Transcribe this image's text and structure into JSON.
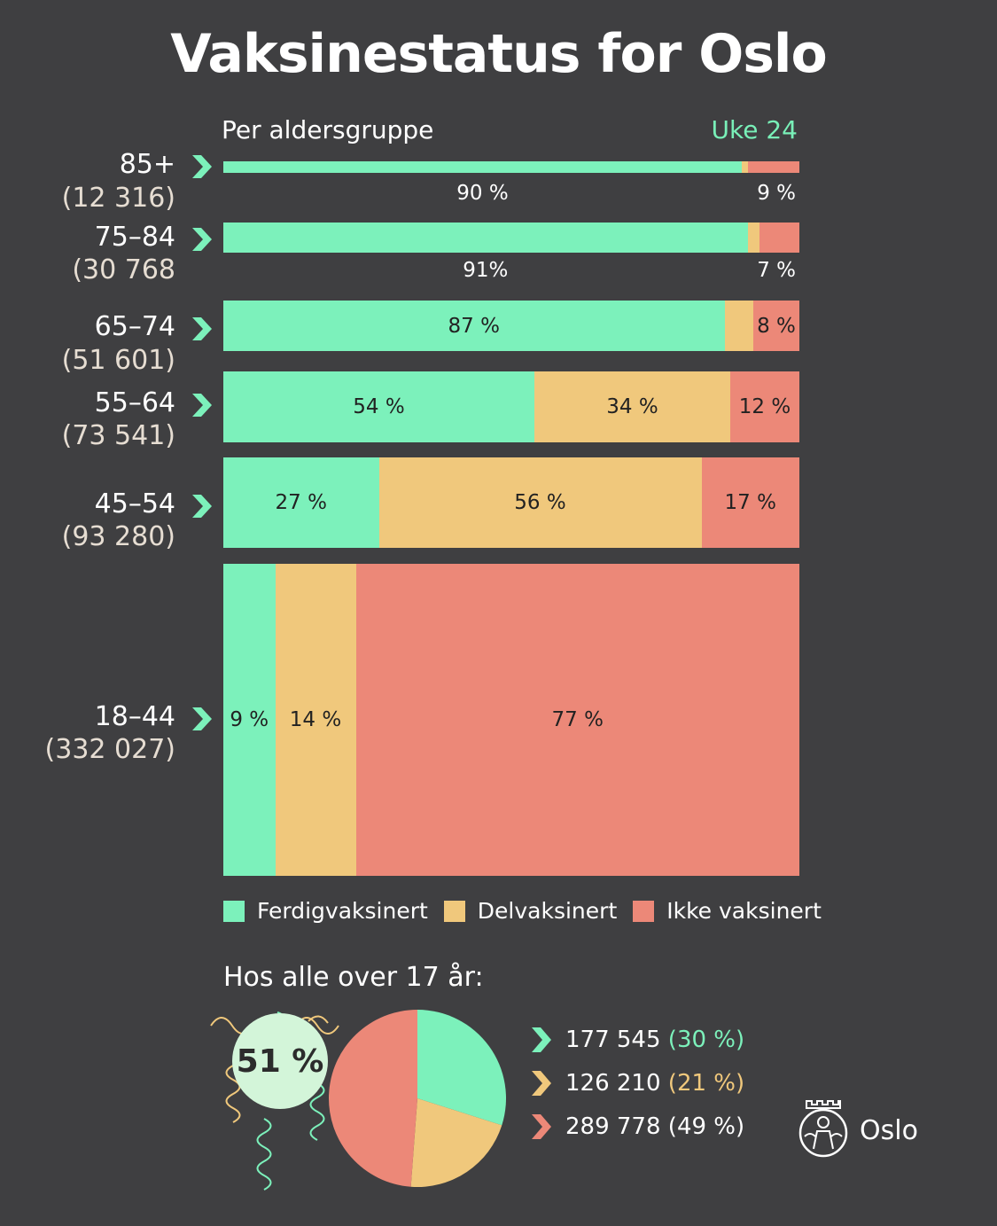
{
  "title": "Vaksinestatus for Oslo",
  "subtitle": "Per aldersgruppe",
  "week": "Uke 24",
  "colors": {
    "full": "#7cf1bb",
    "partial": "#f0c87c",
    "none": "#ec8878",
    "background": "#3f3f41"
  },
  "chart_data": [
    {
      "type": "bar",
      "orientation": "horizontal-stacked-100",
      "categories": [
        "85+",
        "75–84",
        "65–74",
        "55–64",
        "45–54",
        "18–44"
      ],
      "category_counts": [
        "(12 316)",
        "(30 768",
        "(51 601)",
        "(73 541)",
        "(93 280)",
        "(332 027)"
      ],
      "series": [
        {
          "name": "Ferdigvaksinert",
          "values": [
            90,
            91,
            87,
            54,
            27,
            9
          ],
          "labels": [
            "90 %",
            "91%",
            "87 %",
            "54 %",
            "27 %",
            "9 %"
          ]
        },
        {
          "name": "Delvaksinert",
          "values": [
            1,
            2,
            5,
            34,
            56,
            14
          ],
          "labels": [
            "",
            "",
            "",
            "34 %",
            "56 %",
            "14 %"
          ]
        },
        {
          "name": "Ikke vaksinert",
          "values": [
            9,
            7,
            8,
            12,
            17,
            77
          ],
          "labels": [
            "9 %",
            "7 %",
            "8 %",
            "12 %",
            "17 %",
            "77 %"
          ]
        }
      ],
      "ylim": [
        0,
        100
      ],
      "legend_position": "bottom"
    },
    {
      "type": "pie",
      "title": "Hos alle over 17 år:",
      "slices": [
        {
          "name": "Ferdigvaksinert",
          "value": 177545,
          "percent": 30,
          "value_label": "177 545",
          "percent_label": "(30 %)"
        },
        {
          "name": "Delvaksinert",
          "value": 126210,
          "percent": 21,
          "value_label": "126 210",
          "percent_label": "(21 %)"
        },
        {
          "name": "Ikke vaksinert",
          "value": 289778,
          "percent": 49,
          "value_label": "289 778",
          "percent_label": "(49 %)"
        }
      ],
      "highlight": "51 %"
    }
  ],
  "logo_text": "Oslo"
}
